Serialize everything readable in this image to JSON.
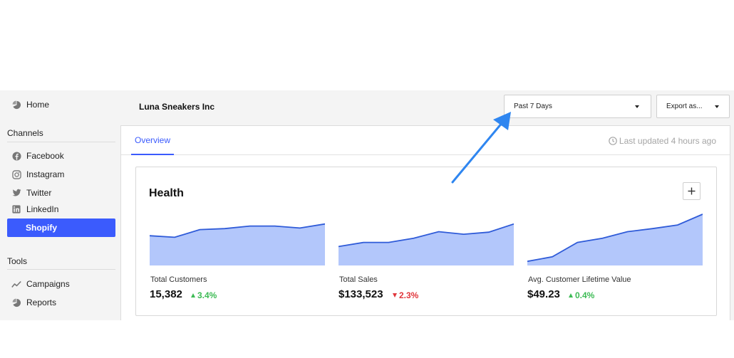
{
  "company_name": "Luna Sneakers Inc",
  "sidebar": {
    "home": {
      "label": "Home",
      "icon": "pie-chart-icon"
    },
    "channels_title": "Channels",
    "channels": [
      {
        "label": "Facebook",
        "icon": "facebook-icon"
      },
      {
        "label": "Instagram",
        "icon": "instagram-icon"
      },
      {
        "label": "Twitter",
        "icon": "twitter-icon"
      },
      {
        "label": "LinkedIn",
        "icon": "linkedin-icon"
      },
      {
        "label": "Shopify",
        "icon": "",
        "active": true
      }
    ],
    "tools_title": "Tools",
    "tools": [
      {
        "label": "Campaigns",
        "icon": "trend-line-icon"
      },
      {
        "label": "Reports",
        "icon": "pie-chart-icon"
      }
    ]
  },
  "toolbar": {
    "date_range": "Past 7 Days",
    "export": "Export as..."
  },
  "tabs": [
    {
      "label": "Overview",
      "active": true
    }
  ],
  "last_updated": "Last updated 4 hours ago",
  "health": {
    "title": "Health",
    "add_button": "+",
    "metrics": [
      {
        "label": "Total Customers",
        "value": "15,382",
        "change": "3.4%",
        "direction": "up"
      },
      {
        "label": "Total Sales",
        "value": "$133,523",
        "change": "2.3%",
        "direction": "down"
      },
      {
        "label": "Avg. Customer Lifetime Value",
        "value": "$49.23",
        "change": "0.4%",
        "direction": "up"
      }
    ]
  },
  "chart_data": [
    {
      "type": "area",
      "values": [
        0.58,
        0.55,
        0.7,
        0.72,
        0.77,
        0.77,
        0.73,
        0.81
      ]
    },
    {
      "type": "area",
      "values": [
        0.37,
        0.45,
        0.45,
        0.53,
        0.66,
        0.61,
        0.65,
        0.81
      ]
    },
    {
      "type": "area",
      "values": [
        0.08,
        0.17,
        0.45,
        0.53,
        0.66,
        0.72,
        0.79,
        1.0
      ]
    }
  ],
  "colors": {
    "accent": "#3b5bfd",
    "area_fill": "#b3c7fb",
    "area_line": "#2f5bd8",
    "positive": "#3dbb55",
    "negative": "#e0353b",
    "annotation_arrow": "#2f86f0"
  }
}
